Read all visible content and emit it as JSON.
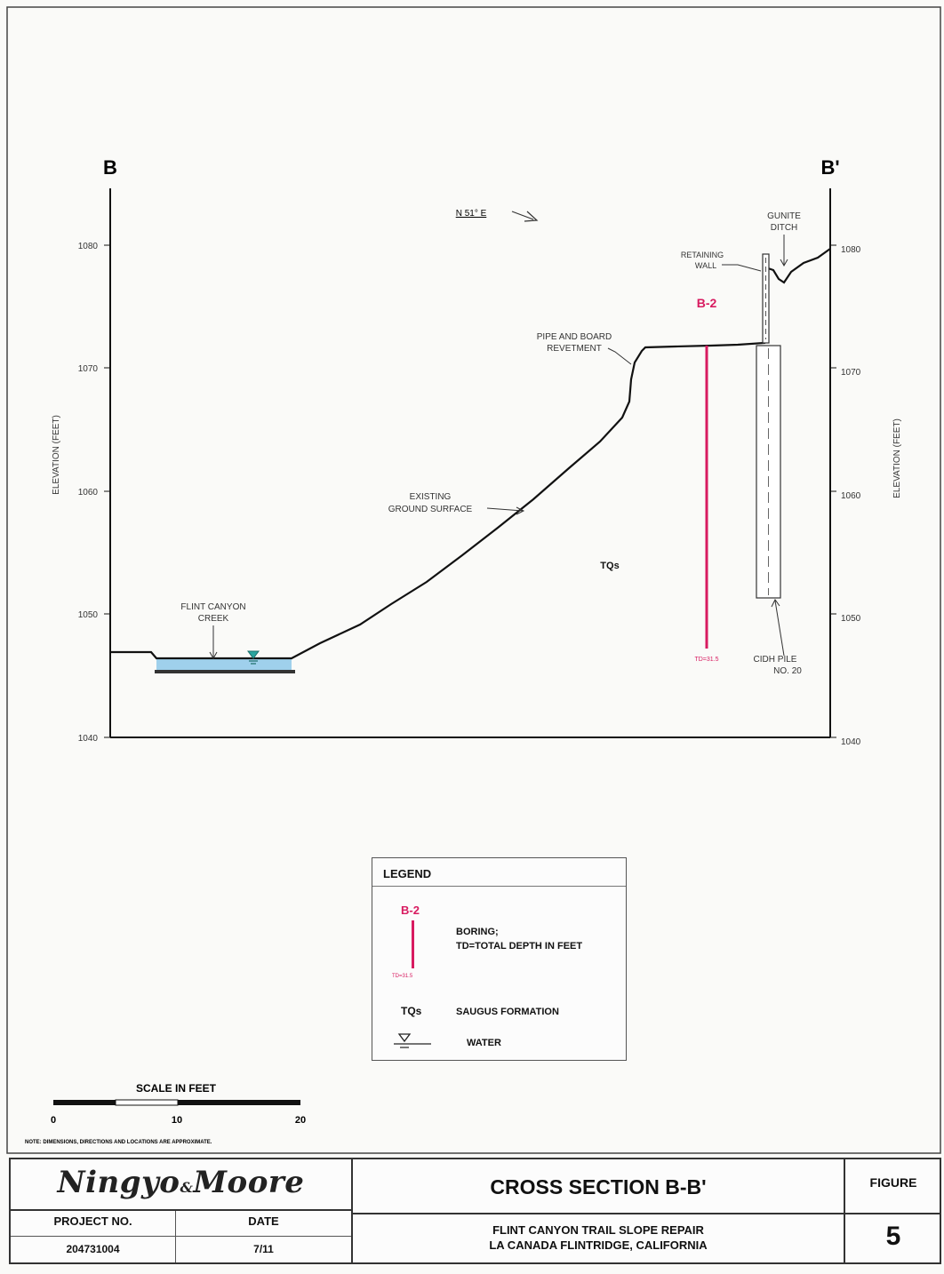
{
  "drawing": {
    "left_label": "B",
    "right_label": "B'",
    "direction": "N 51° E",
    "axis_title": "ELEVATION (FEET)",
    "elevation_ticks": [
      "1080",
      "1070",
      "1060",
      "1050",
      "1040"
    ],
    "callouts": {
      "gunite_ditch_1": "GUNITE",
      "gunite_ditch_2": "DITCH",
      "retaining_wall_1": "RETAINING",
      "retaining_wall_2": "WALL",
      "pipe_board_1": "PIPE AND BOARD",
      "pipe_board_2": "REVETMENT",
      "ground_1": "EXISTING",
      "ground_2": "GROUND SURFACE",
      "creek_1": "FLINT CANYON",
      "creek_2": "CREEK",
      "cidh_1": "CIDH PILE",
      "cidh_2": "NO. 20",
      "formation": "TQs",
      "boring_label": "B-2",
      "boring_td": "TD=31.5"
    }
  },
  "legend": {
    "title": "LEGEND",
    "boring_symbol": "B-2",
    "boring_td": "TD=31.5",
    "boring_desc_1": "BORING;",
    "boring_desc_2": "TD=TOTAL DEPTH IN FEET",
    "formation_symbol": "TQs",
    "formation_desc": "SAUGUS FORMATION",
    "water_desc": "WATER"
  },
  "scale": {
    "title": "SCALE IN FEET",
    "ticks": [
      "0",
      "10",
      "20"
    ],
    "note": "NOTE: DIMENSIONS, DIRECTIONS AND LOCATIONS ARE APPROXIMATE."
  },
  "title_block": {
    "company_1": "Ningyo",
    "company_amp": "&",
    "company_2": "Moore",
    "project_no_label": "PROJECT NO.",
    "project_no": "204731004",
    "date_label": "DATE",
    "date": "7/11",
    "title": "CROSS SECTION B-B'",
    "subtitle_1": "FLINT CANYON TRAIL SLOPE REPAIR",
    "subtitle_2": "LA CANADA FLINTRIDGE, CALIFORNIA",
    "figure_label": "FIGURE",
    "figure_no": "5"
  },
  "colors": {
    "boring": "#d81b60",
    "water": "#9fd0ec",
    "line": "#111111"
  }
}
